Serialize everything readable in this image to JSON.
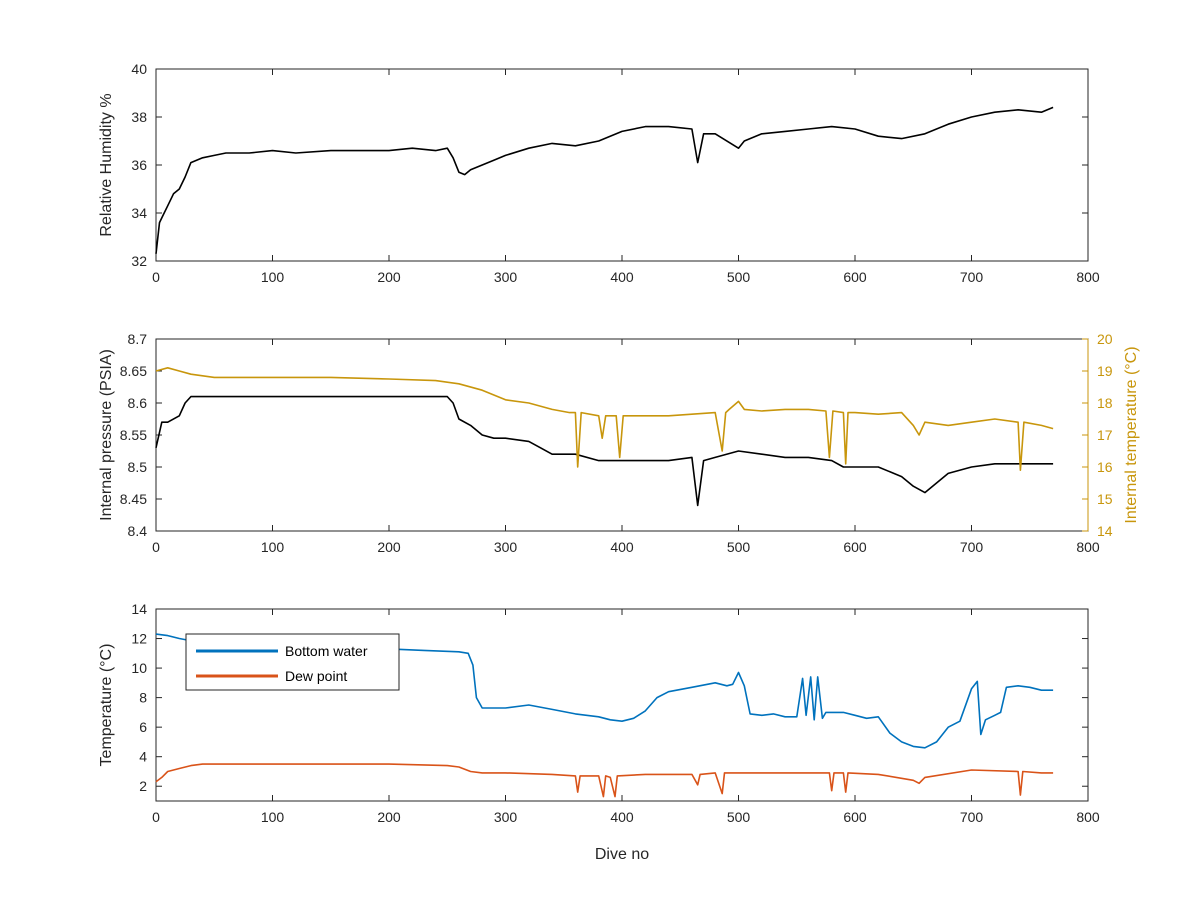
{
  "colors": {
    "black_series": "#000000",
    "internal_temperature": "#c8960c",
    "bottom_water": "#0072bd",
    "dew_point": "#d95319",
    "axis": "#262626"
  },
  "chart_data": [
    {
      "type": "line",
      "id": "humidity",
      "xlabel": "",
      "ylabel": "Relative Humidity %",
      "xlim": [
        0,
        800
      ],
      "ylim": [
        32,
        40
      ],
      "xticks": [
        "0",
        "100",
        "200",
        "300",
        "400",
        "500",
        "600",
        "700",
        "800"
      ],
      "yticks": [
        "32",
        "34",
        "36",
        "38",
        "40"
      ],
      "grid": false,
      "series": [
        {
          "color_key": "black_series",
          "x": [
            0,
            3,
            6,
            10,
            15,
            20,
            25,
            30,
            40,
            50,
            60,
            80,
            100,
            120,
            150,
            180,
            200,
            220,
            240,
            250,
            255,
            260,
            265,
            270,
            280,
            290,
            300,
            320,
            340,
            360,
            380,
            400,
            420,
            440,
            460,
            465,
            470,
            480,
            500,
            505,
            520,
            540,
            560,
            580,
            600,
            620,
            640,
            660,
            680,
            700,
            720,
            740,
            760,
            770
          ],
          "y": [
            32.3,
            33.6,
            33.9,
            34.3,
            34.8,
            35.0,
            35.5,
            36.1,
            36.3,
            36.4,
            36.5,
            36.5,
            36.6,
            36.5,
            36.6,
            36.6,
            36.6,
            36.7,
            36.6,
            36.7,
            36.3,
            35.7,
            35.6,
            35.8,
            36.0,
            36.2,
            36.4,
            36.7,
            36.9,
            36.8,
            37.0,
            37.4,
            37.6,
            37.6,
            37.5,
            36.1,
            37.3,
            37.3,
            36.7,
            37.0,
            37.3,
            37.4,
            37.5,
            37.6,
            37.5,
            37.2,
            37.1,
            37.3,
            37.7,
            38.0,
            38.2,
            38.3,
            38.2,
            38.4
          ]
        }
      ]
    },
    {
      "type": "line",
      "id": "pressure",
      "xlabel": "",
      "ylabel": "Internal pressure (PSIA)",
      "y2label": "Internal temperature (°C)",
      "xlim": [
        0,
        800
      ],
      "ylim": [
        8.4,
        8.7
      ],
      "y2lim": [
        14,
        20
      ],
      "xticks": [
        "0",
        "100",
        "200",
        "300",
        "400",
        "500",
        "600",
        "700",
        "800"
      ],
      "yticks": [
        "8.4",
        "8.45",
        "8.5",
        "8.55",
        "8.6",
        "8.65",
        "8.7"
      ],
      "y2ticks": [
        "14",
        "15",
        "16",
        "17",
        "18",
        "19",
        "20"
      ],
      "grid": false,
      "series": [
        {
          "axis": "left",
          "color_key": "black_series",
          "x": [
            0,
            5,
            10,
            20,
            25,
            30,
            40,
            60,
            80,
            100,
            130,
            160,
            190,
            220,
            250,
            255,
            260,
            270,
            280,
            290,
            300,
            320,
            330,
            340,
            360,
            380,
            400,
            420,
            440,
            460,
            465,
            470,
            480,
            500,
            520,
            540,
            560,
            580,
            590,
            600,
            620,
            640,
            650,
            660,
            680,
            700,
            720,
            740,
            760,
            770
          ],
          "y": [
            8.53,
            8.57,
            8.57,
            8.58,
            8.6,
            8.61,
            8.61,
            8.61,
            8.61,
            8.61,
            8.61,
            8.61,
            8.61,
            8.61,
            8.61,
            8.6,
            8.575,
            8.565,
            8.55,
            8.545,
            8.545,
            8.54,
            8.53,
            8.52,
            8.52,
            8.51,
            8.51,
            8.51,
            8.51,
            8.515,
            8.44,
            8.51,
            8.515,
            8.525,
            8.52,
            8.515,
            8.515,
            8.51,
            8.5,
            8.5,
            8.5,
            8.485,
            8.47,
            8.46,
            8.49,
            8.5,
            8.505,
            8.505,
            8.505,
            8.505
          ]
        },
        {
          "axis": "right",
          "color_key": "internal_temperature",
          "x": [
            0,
            10,
            20,
            30,
            50,
            80,
            100,
            150,
            200,
            240,
            260,
            280,
            300,
            320,
            340,
            355,
            360,
            362,
            365,
            380,
            383,
            386,
            395,
            398,
            401,
            420,
            440,
            480,
            486,
            489,
            492,
            500,
            505,
            520,
            540,
            560,
            575,
            578,
            581,
            590,
            592,
            594,
            600,
            620,
            640,
            650,
            655,
            660,
            680,
            700,
            720,
            740,
            742,
            745,
            760,
            770
          ],
          "y": [
            19.0,
            19.1,
            19.0,
            18.9,
            18.8,
            18.8,
            18.8,
            18.8,
            18.75,
            18.7,
            18.6,
            18.4,
            18.1,
            18.0,
            17.8,
            17.7,
            17.7,
            16.0,
            17.7,
            17.6,
            16.9,
            17.6,
            17.6,
            16.3,
            17.6,
            17.6,
            17.6,
            17.7,
            16.5,
            17.7,
            17.8,
            18.05,
            17.8,
            17.75,
            17.8,
            17.8,
            17.75,
            16.3,
            17.75,
            17.7,
            16.1,
            17.7,
            17.7,
            17.65,
            17.7,
            17.3,
            17.0,
            17.4,
            17.3,
            17.4,
            17.5,
            17.4,
            15.9,
            17.4,
            17.3,
            17.2
          ]
        }
      ]
    },
    {
      "type": "line",
      "id": "temperature",
      "xlabel": "Dive no",
      "ylabel": "Temperature (°C)",
      "xlim": [
        0,
        800
      ],
      "ylim": [
        1,
        14
      ],
      "xticks": [
        "0",
        "100",
        "200",
        "300",
        "400",
        "500",
        "600",
        "700",
        "800"
      ],
      "yticks": [
        "2",
        "4",
        "6",
        "8",
        "10",
        "12",
        "14"
      ],
      "grid": false,
      "legend_position": "top-left",
      "series": [
        {
          "name": "Bottom water",
          "color_key": "bottom_water",
          "x": [
            0,
            10,
            20,
            40,
            60,
            80,
            100,
            150,
            200,
            230,
            260,
            268,
            272,
            275,
            280,
            290,
            300,
            320,
            340,
            360,
            380,
            390,
            400,
            410,
            420,
            430,
            440,
            460,
            480,
            490,
            495,
            500,
            505,
            510,
            520,
            530,
            540,
            550,
            555,
            558,
            562,
            565,
            568,
            572,
            575,
            580,
            590,
            600,
            610,
            620,
            630,
            640,
            650,
            660,
            670,
            680,
            690,
            700,
            705,
            708,
            712,
            720,
            725,
            730,
            740,
            750,
            760,
            770
          ],
          "y": [
            12.3,
            12.2,
            12.0,
            11.7,
            11.5,
            11.3,
            11.3,
            11.3,
            11.3,
            11.2,
            11.1,
            11.0,
            10.2,
            8.0,
            7.3,
            7.3,
            7.3,
            7.5,
            7.2,
            6.9,
            6.7,
            6.5,
            6.4,
            6.6,
            7.1,
            8.0,
            8.4,
            8.7,
            9.0,
            8.8,
            8.9,
            9.7,
            8.8,
            6.9,
            6.8,
            6.9,
            6.7,
            6.7,
            9.3,
            6.8,
            9.4,
            6.5,
            9.4,
            6.6,
            7.0,
            7.0,
            7.0,
            6.8,
            6.6,
            6.7,
            5.6,
            5.0,
            4.7,
            4.6,
            5.0,
            6.0,
            6.4,
            8.6,
            9.1,
            5.5,
            6.5,
            6.8,
            7.0,
            8.7,
            8.8,
            8.7,
            8.5,
            8.5
          ]
        },
        {
          "name": "Dew point",
          "color_key": "dew_point",
          "x": [
            0,
            5,
            10,
            20,
            30,
            40,
            60,
            100,
            150,
            200,
            250,
            260,
            270,
            280,
            300,
            340,
            360,
            362,
            364,
            380,
            384,
            386,
            390,
            394,
            396,
            420,
            460,
            465,
            467,
            480,
            486,
            488,
            490,
            520,
            560,
            578,
            580,
            582,
            590,
            592,
            594,
            620,
            650,
            655,
            660,
            700,
            740,
            742,
            744,
            760,
            770
          ],
          "y": [
            2.3,
            2.6,
            3.0,
            3.2,
            3.4,
            3.5,
            3.5,
            3.5,
            3.5,
            3.5,
            3.4,
            3.3,
            3.0,
            2.9,
            2.9,
            2.8,
            2.7,
            1.6,
            2.7,
            2.7,
            1.3,
            2.7,
            2.6,
            1.3,
            2.7,
            2.8,
            2.8,
            2.1,
            2.8,
            2.9,
            1.5,
            2.9,
            2.9,
            2.9,
            2.9,
            2.9,
            1.7,
            2.9,
            2.9,
            1.6,
            2.9,
            2.8,
            2.4,
            2.2,
            2.6,
            3.1,
            3.0,
            1.4,
            3.0,
            2.9,
            2.9
          ]
        }
      ]
    }
  ]
}
